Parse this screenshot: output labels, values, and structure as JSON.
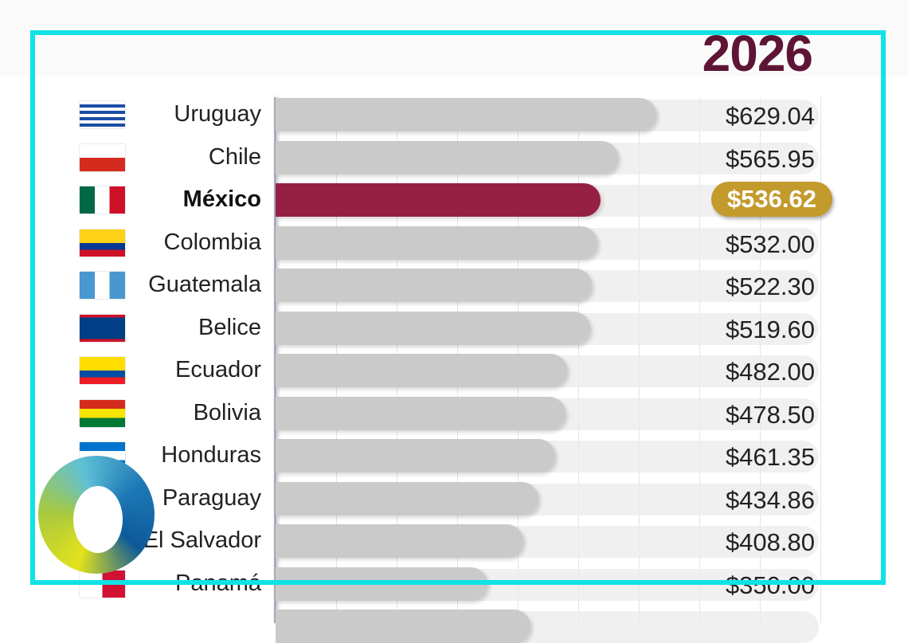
{
  "chart_data": {
    "type": "bar",
    "orientation": "horizontal",
    "title": "2026",
    "highlight": "México",
    "categories": [
      "Uruguay",
      "Chile",
      "México",
      "Colombia",
      "Guatemala",
      "Belice",
      "Ecuador",
      "Bolivia",
      "Honduras",
      "Paraguay",
      "El Salvador",
      "Panamá"
    ],
    "values": [
      629.04,
      565.95,
      536.62,
      532.0,
      522.3,
      519.6,
      482.0,
      478.5,
      461.35,
      434.86,
      408.8,
      350.0
    ],
    "labels": [
      "$629.04",
      "$565.95",
      "$536.62",
      "$532.00",
      "$522.30",
      "$519.60",
      "$482.00",
      "$478.50",
      "$461.35",
      "$434.86",
      "$408.80",
      "$350.00"
    ],
    "xlim": [
      0,
      900
    ],
    "grid": true
  },
  "colors": {
    "highlight_bar": "#962043",
    "bar": "#cacaca",
    "badge": "#c39a2c",
    "title": "#5e1535",
    "frame": "#10e2e6"
  },
  "flags": [
    "uruguay-flag",
    "chile-flag",
    "mexico-flag",
    "colombia-flag",
    "guatemala-flag",
    "belize-flag",
    "ecuador-flag",
    "bolivia-flag",
    "honduras-flag",
    "paraguay-flag",
    "el-salvador-flag",
    "panama-flag"
  ]
}
